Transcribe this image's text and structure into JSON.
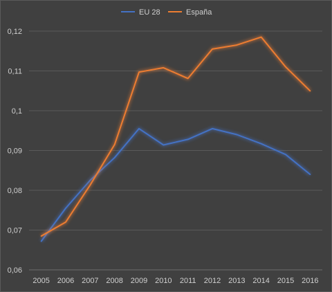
{
  "chart_data": {
    "type": "line",
    "title": "",
    "xlabel": "",
    "ylabel": "",
    "x": [
      "2005",
      "2006",
      "2007",
      "2008",
      "2009",
      "2010",
      "2011",
      "2012",
      "2013",
      "2014",
      "2015",
      "2016"
    ],
    "ylim": [
      0.06,
      0.12
    ],
    "yticks": [
      "0,06",
      "0,07",
      "0,08",
      "0,09",
      "0,1",
      "0,11",
      "0,12"
    ],
    "grid": true,
    "legend_position": "top-center",
    "series": [
      {
        "name": "EU 28",
        "color": "#4472c4",
        "values": [
          0.0672,
          0.0755,
          0.0825,
          0.0882,
          0.0955,
          0.0914,
          0.0928,
          0.0955,
          0.094,
          0.0917,
          0.089,
          0.084
        ]
      },
      {
        "name": "España",
        "color": "#ed7d31",
        "values": [
          0.0685,
          0.072,
          0.0813,
          0.0915,
          0.1097,
          0.1108,
          0.1081,
          0.1155,
          0.1165,
          0.1185,
          0.111,
          0.105
        ]
      }
    ]
  }
}
